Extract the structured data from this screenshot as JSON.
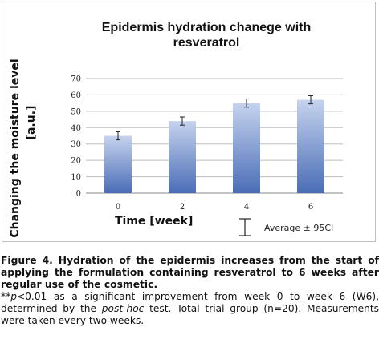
{
  "chart_data": {
    "type": "bar",
    "title_lines": [
      "Epidermis hydration chanege with",
      "resveratrol"
    ],
    "ylabel_lines": [
      "Changing the moisture level",
      "[a.u.]"
    ],
    "xlabel": "Time [week]",
    "categories": [
      "0",
      "2",
      "4",
      "6"
    ],
    "values": [
      35,
      44,
      55,
      57
    ],
    "error": [
      2.5,
      2.5,
      2.5,
      2.5
    ],
    "ylim": [
      0,
      70
    ],
    "yticks": [
      0,
      10,
      20,
      30,
      40,
      50,
      60,
      70
    ],
    "grid": true,
    "legend": "Average ± 95CI",
    "legend_position": "bottom-right",
    "colors": {
      "bar_top": "#c6d3ee",
      "bar_bottom": "#4a6db6",
      "grid": "#bdbdbd",
      "error": "#222222"
    }
  },
  "caption": {
    "title": "Figure 4. Hydration of the epidermis increases from the start of applying the formulation containing resveratrol to 6 weeks after regular use of the cosmetic.",
    "note_prefix": "**",
    "note_p": "p",
    "note_part1": "<0.01 as a significant improvement from week 0 to week 6 (W6), determined by the ",
    "note_posthoc": "post-hoc",
    "note_part2": " test. Total trial group (n=20). Measurements were taken every two weeks."
  }
}
